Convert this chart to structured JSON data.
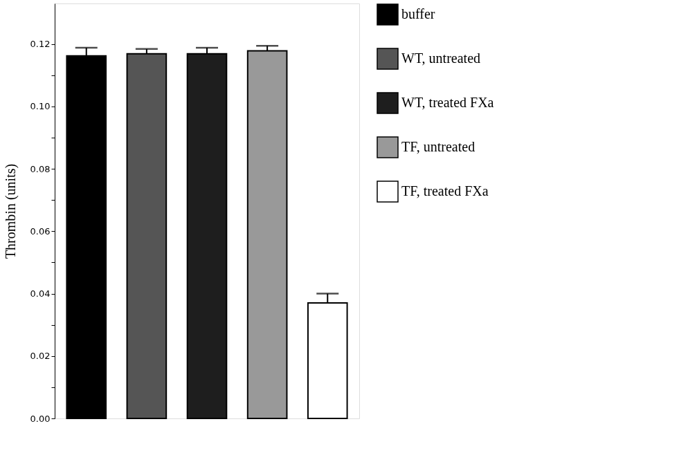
{
  "chart_data": {
    "type": "bar",
    "ylabel": "Thrombin (units)",
    "stacked": true,
    "categories": [
      null,
      null,
      null,
      null,
      null
    ],
    "series": [
      {
        "name": "buffer",
        "color": "#000000",
        "values": [
          0.1162,
          null,
          null,
          null,
          null
        ],
        "errors": [
          [
            0.1162,
            0.1188
          ],
          null,
          null,
          null,
          null
        ]
      },
      {
        "name": "WT, untreated",
        "color": "#555555",
        "values": [
          null,
          0.1169,
          null,
          null,
          null
        ],
        "errors": [
          null,
          [
            0.1169,
            0.1184
          ],
          null,
          null,
          null
        ]
      },
      {
        "name": "WT, treated FXa",
        "color": "#1e1e1e",
        "values": [
          null,
          null,
          0.1169,
          null,
          null
        ],
        "errors": [
          null,
          null,
          [
            0.1169,
            0.1188
          ],
          null,
          null
        ]
      },
      {
        "name": "TF, untreated",
        "color": "#999999",
        "values": [
          null,
          null,
          null,
          0.1178,
          null
        ],
        "errors": [
          null,
          null,
          null,
          [
            0.1178,
            0.1194
          ],
          null
        ]
      },
      {
        "name": "TF, treated FXa",
        "color": "#ffffff",
        "values": [
          null,
          null,
          null,
          null,
          0.037
        ],
        "errors": [
          null,
          null,
          null,
          null,
          [
            0.037,
            0.04
          ]
        ]
      }
    ],
    "ylim": [
      0,
      0.133
    ],
    "yticks": [
      {
        "value": 0,
        "label": "0.00"
      },
      {
        "value": 0.01,
        "label": null
      },
      {
        "value": 0.02,
        "label": "0.02"
      },
      {
        "value": 0.03,
        "label": null
      },
      {
        "value": 0.04,
        "label": "0.04"
      },
      {
        "value": 0.05,
        "label": null
      },
      {
        "value": 0.06,
        "label": "0.06"
      },
      {
        "value": 0.07,
        "label": null
      },
      {
        "value": 0.08,
        "label": "0.08"
      },
      {
        "value": 0.09,
        "label": null
      },
      {
        "value": 0.1,
        "label": "0.10"
      },
      {
        "value": 0.11,
        "label": null
      },
      {
        "value": 0.12,
        "label": "0.12"
      }
    ],
    "grid": false,
    "legend": "right",
    "tick_labels": "y"
  }
}
